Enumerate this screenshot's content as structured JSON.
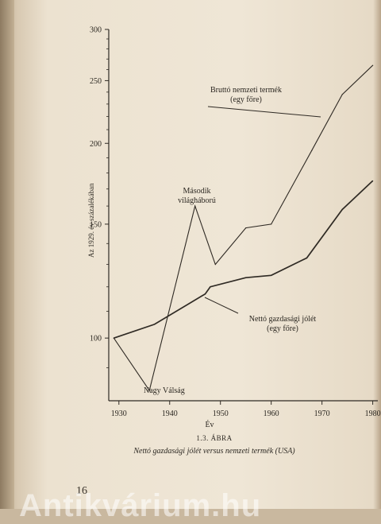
{
  "page": {
    "page_number": "16",
    "watermark": "Antikvárium.hu"
  },
  "caption": {
    "figure_number": "1.3. ÁBRA",
    "text": "Nettó gazdasági jólét versus nemzeti termék (USA)"
  },
  "colors": {
    "line": "#2f2a24",
    "paper": "#efe6d6"
  },
  "chart_data": {
    "type": "line",
    "title": "",
    "xlabel": "Év",
    "ylabel": "Az 1929. év százalékában",
    "y_scale": "log",
    "xlim": [
      1928,
      1981
    ],
    "ylim": [
      80,
      300
    ],
    "x_ticks": [
      1930,
      1940,
      1950,
      1960,
      1970,
      1980
    ],
    "y_ticks": [
      100,
      150,
      200,
      250,
      300
    ],
    "grid": false,
    "series": [
      {
        "name": "Bruttó nemzeti termék (egy főre)",
        "x": [
          1929,
          1936,
          1945,
          1949,
          1955,
          1960,
          1968,
          1974,
          1980
        ],
        "y": [
          100,
          83,
          160,
          130,
          148,
          150,
          195,
          238,
          264
        ]
      },
      {
        "name": "Nettó gazdasági jólét (egy főre)",
        "x": [
          1929,
          1937,
          1947,
          1948,
          1955,
          1960,
          1967,
          1974,
          1980
        ],
        "y": [
          100,
          105,
          117,
          120,
          124,
          125,
          133,
          158,
          175
        ]
      }
    ],
    "annotations": [
      {
        "lines": [
          "Bruttó nemzeti termék",
          "(egy főre)"
        ]
      },
      {
        "lines": [
          "Nettó gazdasági jólét",
          "(egy főre)"
        ]
      },
      {
        "lines": [
          "Második",
          "világháború"
        ]
      },
      {
        "lines": [
          "Nagy Válság"
        ]
      }
    ]
  }
}
